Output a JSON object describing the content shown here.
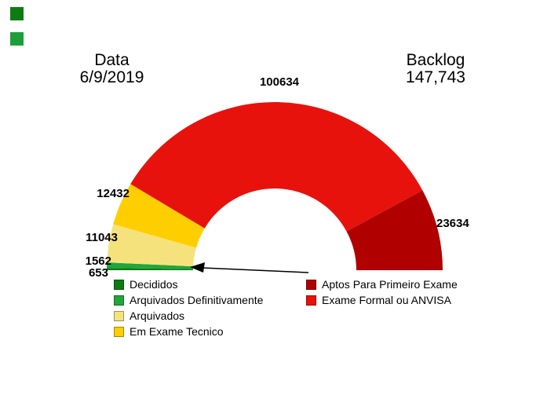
{
  "header": {
    "date_label": "Data",
    "date_value": "6/9/2019",
    "backlog_label": "Backlog",
    "backlog_value": "147,743"
  },
  "corner_swatches": {
    "colors": [
      "#0D7C12",
      "#1E9E38"
    ]
  },
  "chart_data": {
    "type": "pie",
    "variant": "half-donut-gauge",
    "title": "Backlog",
    "total_label": "147,743",
    "background": "#FFFFFF",
    "legend_position": "bottom",
    "segments": [
      {
        "label": "Decididos",
        "value": 653,
        "color": "#0D7C12"
      },
      {
        "label": "Arquivados Definitivamente",
        "value": 1562,
        "color": "#22A53C"
      },
      {
        "label": "Arquivados",
        "value": 11043,
        "color": "#F6E27C"
      },
      {
        "label": "Em Exame Tecnico",
        "value": 12432,
        "color": "#FFCE00"
      },
      {
        "label": "Exame Formal ou ANVISA",
        "value": 100634,
        "color": "#E8120D"
      },
      {
        "label": "Aptos Para Primeiro Exame",
        "value": 23634,
        "color": "#B00000"
      }
    ],
    "annotations": [
      {
        "type": "arrow",
        "from": "right-legend-area",
        "to": "small-green-segments"
      }
    ]
  },
  "legend": {
    "left": [
      {
        "label": "Decididos",
        "color": "#0D7C12"
      },
      {
        "label": "Arquivados Definitivamente",
        "color": "#22A53C"
      },
      {
        "label": "Arquivados",
        "color": "#F6E27C"
      },
      {
        "label": "Em Exame Tecnico",
        "color": "#FFCE00"
      }
    ],
    "right": [
      {
        "label": "Aptos Para Primeiro Exame",
        "color": "#B00000"
      },
      {
        "label": "Exame Formal ou ANVISA",
        "color": "#E8120D"
      }
    ]
  }
}
